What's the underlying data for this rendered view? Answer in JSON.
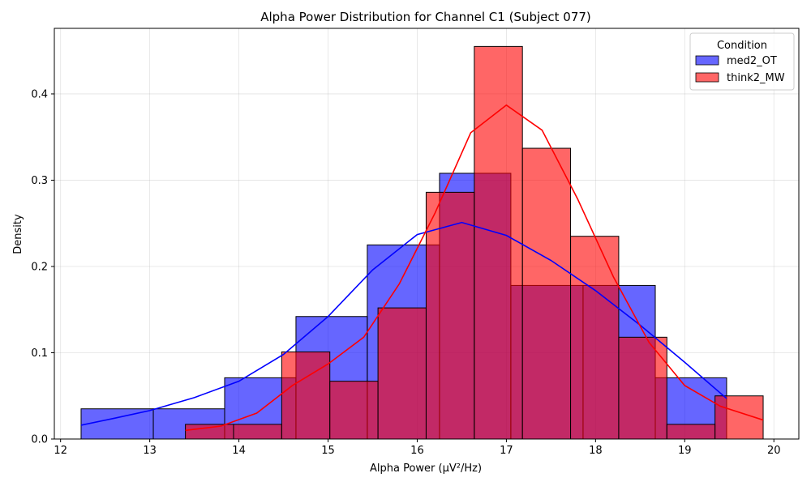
{
  "chart_data": {
    "type": "histogram",
    "title": "Alpha Power Distribution for Channel C1 (Subject 077)",
    "xlabel": "Alpha Power (µV²/Hz)",
    "ylabel": "Density",
    "xlim": [
      11.93,
      20.28
    ],
    "ylim": [
      0,
      0.476
    ],
    "xticks": [
      12,
      13,
      14,
      15,
      16,
      17,
      18,
      19,
      20
    ],
    "yticks": [
      0.0,
      0.1,
      0.2,
      0.3,
      0.4
    ],
    "ytick_labels": [
      "0.0",
      "0.1",
      "0.2",
      "0.3",
      "0.4"
    ],
    "grid": true,
    "legend": {
      "title": "Condition",
      "placement": "top-right"
    },
    "series": [
      {
        "name": "med2_OT",
        "color": "#0000ff",
        "kde_color": "#0000ff",
        "bins": [
          {
            "x0": 12.23,
            "x1": 13.04,
            "density": 0.035
          },
          {
            "x0": 13.04,
            "x1": 13.84,
            "density": 0.035
          },
          {
            "x0": 13.84,
            "x1": 14.64,
            "density": 0.071
          },
          {
            "x0": 14.64,
            "x1": 15.44,
            "density": 0.142
          },
          {
            "x0": 15.44,
            "x1": 16.25,
            "density": 0.225
          },
          {
            "x0": 16.25,
            "x1": 17.05,
            "density": 0.308
          },
          {
            "x0": 17.05,
            "x1": 17.86,
            "density": 0.178
          },
          {
            "x0": 17.86,
            "x1": 18.67,
            "density": 0.178
          },
          {
            "x0": 18.67,
            "x1": 19.47,
            "density": 0.071
          }
        ],
        "kde": [
          [
            12.23,
            0.016
          ],
          [
            12.6,
            0.024
          ],
          [
            13.0,
            0.033
          ],
          [
            13.5,
            0.048
          ],
          [
            14.0,
            0.067
          ],
          [
            14.5,
            0.098
          ],
          [
            15.0,
            0.142
          ],
          [
            15.5,
            0.196
          ],
          [
            16.0,
            0.237
          ],
          [
            16.5,
            0.251
          ],
          [
            17.0,
            0.236
          ],
          [
            17.5,
            0.207
          ],
          [
            18.0,
            0.172
          ],
          [
            18.5,
            0.132
          ],
          [
            19.0,
            0.089
          ],
          [
            19.47,
            0.047
          ]
        ]
      },
      {
        "name": "think2_MW",
        "color": "#ff0000",
        "kde_color": "#ff0000",
        "bins": [
          {
            "x0": 13.4,
            "x1": 13.94,
            "density": 0.017
          },
          {
            "x0": 13.94,
            "x1": 14.48,
            "density": 0.017
          },
          {
            "x0": 14.48,
            "x1": 15.02,
            "density": 0.101
          },
          {
            "x0": 15.02,
            "x1": 15.56,
            "density": 0.067
          },
          {
            "x0": 15.56,
            "x1": 16.1,
            "density": 0.152
          },
          {
            "x0": 16.1,
            "x1": 16.64,
            "density": 0.286
          },
          {
            "x0": 16.64,
            "x1": 17.18,
            "density": 0.455
          },
          {
            "x0": 17.18,
            "x1": 17.72,
            "density": 0.337
          },
          {
            "x0": 17.72,
            "x1": 18.26,
            "density": 0.235
          },
          {
            "x0": 18.26,
            "x1": 18.8,
            "density": 0.118
          },
          {
            "x0": 18.8,
            "x1": 19.34,
            "density": 0.017
          },
          {
            "x0": 19.34,
            "x1": 19.88,
            "density": 0.05
          }
        ],
        "kde": [
          [
            13.4,
            0.01
          ],
          [
            13.8,
            0.015
          ],
          [
            14.2,
            0.03
          ],
          [
            14.6,
            0.062
          ],
          [
            15.0,
            0.087
          ],
          [
            15.4,
            0.118
          ],
          [
            15.8,
            0.18
          ],
          [
            16.2,
            0.262
          ],
          [
            16.6,
            0.355
          ],
          [
            17.0,
            0.387
          ],
          [
            17.4,
            0.358
          ],
          [
            17.8,
            0.278
          ],
          [
            18.2,
            0.188
          ],
          [
            18.6,
            0.112
          ],
          [
            19.0,
            0.062
          ],
          [
            19.4,
            0.038
          ],
          [
            19.88,
            0.022
          ]
        ]
      }
    ]
  }
}
